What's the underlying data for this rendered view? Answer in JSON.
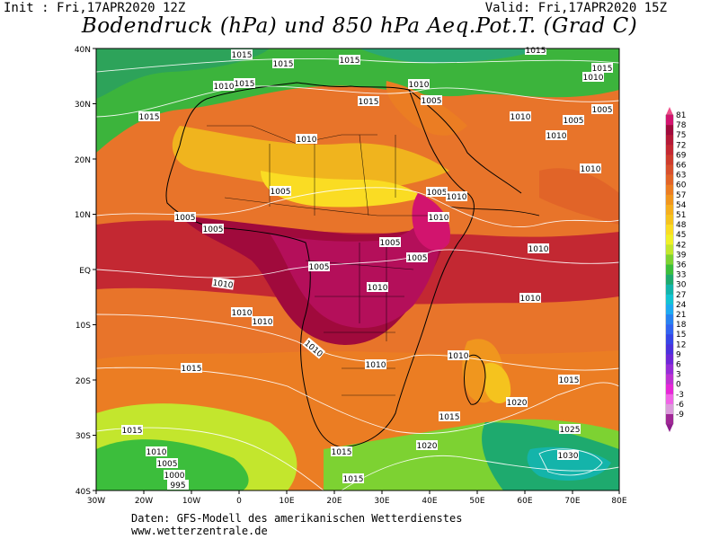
{
  "header": {
    "init": "Init : Fri,17APR2020 12Z",
    "valid": "Valid: Fri,17APR2020 15Z",
    "title": "Bodendruck (hPa) und 850 hPa Aeq.Pot.T. (Grad C)"
  },
  "axes": {
    "lat_labels": [
      "40N",
      "30N",
      "20N",
      "10N",
      "EQ",
      "10S",
      "20S",
      "30S",
      "40S"
    ],
    "lon_labels": [
      "30W",
      "20W",
      "10W",
      "0",
      "10E",
      "20E",
      "30E",
      "40E",
      "50E",
      "60E",
      "70E",
      "80E"
    ]
  },
  "legend": {
    "values": [
      "81",
      "78",
      "75",
      "72",
      "69",
      "66",
      "63",
      "60",
      "57",
      "54",
      "51",
      "48",
      "45",
      "42",
      "39",
      "36",
      "33",
      "30",
      "27",
      "24",
      "21",
      "18",
      "15",
      "12",
      "9",
      "6",
      "3",
      "0",
      "-3",
      "-6",
      "-9"
    ],
    "colors": [
      "#d2146e",
      "#a00a3c",
      "#b41937",
      "#c32832",
      "#cd3c2d",
      "#d7502d",
      "#e16428",
      "#eb7d23",
      "#f0961e",
      "#f5af1e",
      "#f5c31e",
      "#fadc23",
      "#f0f028",
      "#c3e62d",
      "#7dd232",
      "#3cbe3c",
      "#1eaa6e",
      "#14b4aa",
      "#14c3d2",
      "#1eaaf0",
      "#2882f0",
      "#3264f0",
      "#3746e6",
      "#4b32dc",
      "#6e28d7",
      "#962dd7",
      "#be32d2",
      "#e628d7",
      "#f064e6",
      "#dc9bdc",
      "#a02896"
    ]
  },
  "isobars": [
    "1015",
    "1015",
    "1015",
    "1015",
    "1015",
    "1010",
    "1010",
    "1015",
    "1005",
    "1010",
    "1015",
    "1010",
    "1005",
    "1010",
    "1005",
    "1010",
    "1010",
    "1005",
    "1005",
    "1005",
    "1005",
    "1005",
    "1010",
    "1010",
    "1005",
    "1005",
    "1010",
    "1010",
    "1010",
    "1010",
    "1010",
    "1015",
    "1010",
    "1010",
    "1020",
    "1015",
    "1015",
    "1025",
    "1015",
    "1010",
    "1005",
    "1000",
    "995",
    "1015",
    "1020",
    "1030",
    "1015",
    "1010",
    "1015",
    "1010"
  ],
  "footer": {
    "line1": "Daten: GFS-Modell des amerikanischen Wetterdienstes",
    "line2": "www.wetterzentrale.de"
  }
}
